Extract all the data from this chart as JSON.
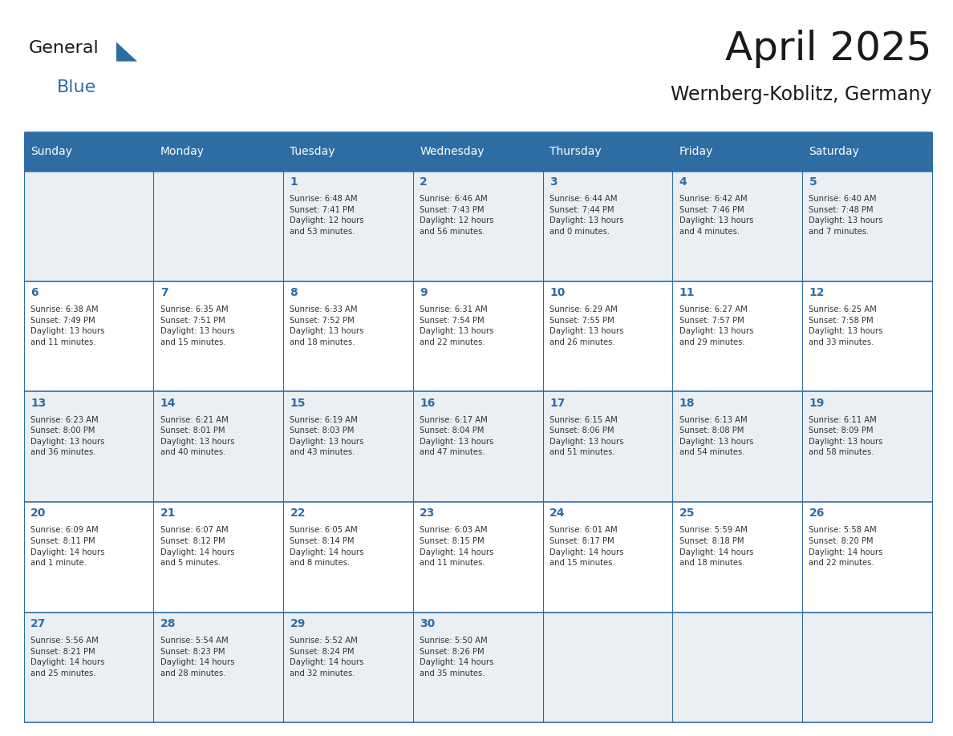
{
  "title": "April 2025",
  "subtitle": "Wernberg-Koblitz, Germany",
  "header_bg_color": "#2E6DA4",
  "header_text_color": "#FFFFFF",
  "odd_row_bg": "#EAEFF4",
  "even_row_bg": "#FFFFFF",
  "grid_line_color": "#2E6DA4",
  "day_number_color": "#2E6DA4",
  "cell_text_color": "#333333",
  "title_color": "#1a1a1a",
  "subtitle_color": "#1a1a1a",
  "logo_general_color": "#1a1a1a",
  "logo_blue_color": "#2E6DA4",
  "days_of_week": [
    "Sunday",
    "Monday",
    "Tuesday",
    "Wednesday",
    "Thursday",
    "Friday",
    "Saturday"
  ],
  "weeks": [
    [
      {
        "day": "",
        "info": ""
      },
      {
        "day": "",
        "info": ""
      },
      {
        "day": "1",
        "info": "Sunrise: 6:48 AM\nSunset: 7:41 PM\nDaylight: 12 hours\nand 53 minutes."
      },
      {
        "day": "2",
        "info": "Sunrise: 6:46 AM\nSunset: 7:43 PM\nDaylight: 12 hours\nand 56 minutes."
      },
      {
        "day": "3",
        "info": "Sunrise: 6:44 AM\nSunset: 7:44 PM\nDaylight: 13 hours\nand 0 minutes."
      },
      {
        "day": "4",
        "info": "Sunrise: 6:42 AM\nSunset: 7:46 PM\nDaylight: 13 hours\nand 4 minutes."
      },
      {
        "day": "5",
        "info": "Sunrise: 6:40 AM\nSunset: 7:48 PM\nDaylight: 13 hours\nand 7 minutes."
      }
    ],
    [
      {
        "day": "6",
        "info": "Sunrise: 6:38 AM\nSunset: 7:49 PM\nDaylight: 13 hours\nand 11 minutes."
      },
      {
        "day": "7",
        "info": "Sunrise: 6:35 AM\nSunset: 7:51 PM\nDaylight: 13 hours\nand 15 minutes."
      },
      {
        "day": "8",
        "info": "Sunrise: 6:33 AM\nSunset: 7:52 PM\nDaylight: 13 hours\nand 18 minutes."
      },
      {
        "day": "9",
        "info": "Sunrise: 6:31 AM\nSunset: 7:54 PM\nDaylight: 13 hours\nand 22 minutes."
      },
      {
        "day": "10",
        "info": "Sunrise: 6:29 AM\nSunset: 7:55 PM\nDaylight: 13 hours\nand 26 minutes."
      },
      {
        "day": "11",
        "info": "Sunrise: 6:27 AM\nSunset: 7:57 PM\nDaylight: 13 hours\nand 29 minutes."
      },
      {
        "day": "12",
        "info": "Sunrise: 6:25 AM\nSunset: 7:58 PM\nDaylight: 13 hours\nand 33 minutes."
      }
    ],
    [
      {
        "day": "13",
        "info": "Sunrise: 6:23 AM\nSunset: 8:00 PM\nDaylight: 13 hours\nand 36 minutes."
      },
      {
        "day": "14",
        "info": "Sunrise: 6:21 AM\nSunset: 8:01 PM\nDaylight: 13 hours\nand 40 minutes."
      },
      {
        "day": "15",
        "info": "Sunrise: 6:19 AM\nSunset: 8:03 PM\nDaylight: 13 hours\nand 43 minutes."
      },
      {
        "day": "16",
        "info": "Sunrise: 6:17 AM\nSunset: 8:04 PM\nDaylight: 13 hours\nand 47 minutes."
      },
      {
        "day": "17",
        "info": "Sunrise: 6:15 AM\nSunset: 8:06 PM\nDaylight: 13 hours\nand 51 minutes."
      },
      {
        "day": "18",
        "info": "Sunrise: 6:13 AM\nSunset: 8:08 PM\nDaylight: 13 hours\nand 54 minutes."
      },
      {
        "day": "19",
        "info": "Sunrise: 6:11 AM\nSunset: 8:09 PM\nDaylight: 13 hours\nand 58 minutes."
      }
    ],
    [
      {
        "day": "20",
        "info": "Sunrise: 6:09 AM\nSunset: 8:11 PM\nDaylight: 14 hours\nand 1 minute."
      },
      {
        "day": "21",
        "info": "Sunrise: 6:07 AM\nSunset: 8:12 PM\nDaylight: 14 hours\nand 5 minutes."
      },
      {
        "day": "22",
        "info": "Sunrise: 6:05 AM\nSunset: 8:14 PM\nDaylight: 14 hours\nand 8 minutes."
      },
      {
        "day": "23",
        "info": "Sunrise: 6:03 AM\nSunset: 8:15 PM\nDaylight: 14 hours\nand 11 minutes."
      },
      {
        "day": "24",
        "info": "Sunrise: 6:01 AM\nSunset: 8:17 PM\nDaylight: 14 hours\nand 15 minutes."
      },
      {
        "day": "25",
        "info": "Sunrise: 5:59 AM\nSunset: 8:18 PM\nDaylight: 14 hours\nand 18 minutes."
      },
      {
        "day": "26",
        "info": "Sunrise: 5:58 AM\nSunset: 8:20 PM\nDaylight: 14 hours\nand 22 minutes."
      }
    ],
    [
      {
        "day": "27",
        "info": "Sunrise: 5:56 AM\nSunset: 8:21 PM\nDaylight: 14 hours\nand 25 minutes."
      },
      {
        "day": "28",
        "info": "Sunrise: 5:54 AM\nSunset: 8:23 PM\nDaylight: 14 hours\nand 28 minutes."
      },
      {
        "day": "29",
        "info": "Sunrise: 5:52 AM\nSunset: 8:24 PM\nDaylight: 14 hours\nand 32 minutes."
      },
      {
        "day": "30",
        "info": "Sunrise: 5:50 AM\nSunset: 8:26 PM\nDaylight: 14 hours\nand 35 minutes."
      },
      {
        "day": "",
        "info": ""
      },
      {
        "day": "",
        "info": ""
      },
      {
        "day": "",
        "info": ""
      }
    ]
  ],
  "fig_width": 11.88,
  "fig_height": 9.18,
  "dpi": 100
}
